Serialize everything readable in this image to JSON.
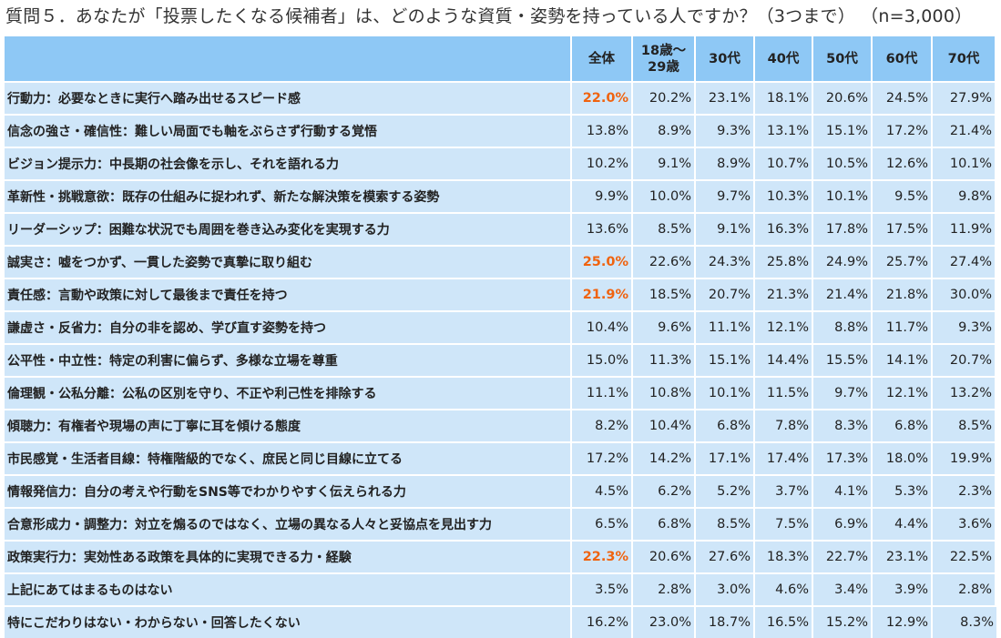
{
  "title": "質問５．あなたが「投票したくなる候補者」は、どのような資質・姿勢を持っている人ですか？（3つまで） （n=3,000）",
  "highlight_color": "#f0630f",
  "header_color": "#8ec8f5",
  "cell_color": "#cfe6f9",
  "chart_data": {
    "type": "table",
    "columns": [
      "全体",
      "18歳～29歳",
      "30代",
      "40代",
      "50代",
      "60代",
      "70代"
    ],
    "column_display": [
      [
        "全体"
      ],
      [
        "18歳～",
        "29歳"
      ],
      [
        "30代"
      ],
      [
        "40代"
      ],
      [
        "50代"
      ],
      [
        "60代"
      ],
      [
        "70代"
      ]
    ],
    "rows": [
      {
        "label": "行動力：必要なときに実行へ踏み出せるスピード感",
        "values": [
          "22.0%",
          "20.2%",
          "23.1%",
          "18.1%",
          "20.6%",
          "24.5%",
          "27.9%"
        ],
        "highlight": true
      },
      {
        "label": "信念の強さ・確信性：難しい局面でも軸をぶらさず行動する覚悟",
        "values": [
          "13.8%",
          "8.9%",
          "9.3%",
          "13.1%",
          "15.1%",
          "17.2%",
          "21.4%"
        ],
        "highlight": false
      },
      {
        "label": "ビジョン提示力：中長期の社会像を示し、それを語れる力",
        "values": [
          "10.2%",
          "9.1%",
          "8.9%",
          "10.7%",
          "10.5%",
          "12.6%",
          "10.1%"
        ],
        "highlight": false
      },
      {
        "label": "革新性・挑戦意欲：既存の仕組みに捉われず、新たな解決策を模索する姿勢",
        "values": [
          "9.9%",
          "10.0%",
          "9.7%",
          "10.3%",
          "10.1%",
          "9.5%",
          "9.8%"
        ],
        "highlight": false
      },
      {
        "label": "リーダーシップ：困難な状況でも周囲を巻き込み変化を実現する力",
        "values": [
          "13.6%",
          "8.5%",
          "9.1%",
          "16.3%",
          "17.8%",
          "17.5%",
          "11.9%"
        ],
        "highlight": false
      },
      {
        "label": "誠実さ：嘘をつかず、一貫した姿勢で真摯に取り組む",
        "values": [
          "25.0%",
          "22.6%",
          "24.3%",
          "25.8%",
          "24.9%",
          "25.7%",
          "27.4%"
        ],
        "highlight": true
      },
      {
        "label": "責任感：言動や政策に対して最後まで責任を持つ",
        "values": [
          "21.9%",
          "18.5%",
          "20.7%",
          "21.3%",
          "21.4%",
          "21.8%",
          "30.0%"
        ],
        "highlight": true
      },
      {
        "label": "謙虚さ・反省力：自分の非を認め、学び直す姿勢を持つ",
        "values": [
          "10.4%",
          "9.6%",
          "11.1%",
          "12.1%",
          "8.8%",
          "11.7%",
          "9.3%"
        ],
        "highlight": false
      },
      {
        "label": "公平性・中立性：特定の利害に偏らず、多様な立場を尊重",
        "values": [
          "15.0%",
          "11.3%",
          "15.1%",
          "14.4%",
          "15.5%",
          "14.1%",
          "20.7%"
        ],
        "highlight": false
      },
      {
        "label": "倫理観・公私分離：公私の区別を守り、不正や利己性を排除する",
        "values": [
          "11.1%",
          "10.8%",
          "10.1%",
          "11.5%",
          "9.7%",
          "12.1%",
          "13.2%"
        ],
        "highlight": false
      },
      {
        "label": "傾聴力：有権者や現場の声に丁寧に耳を傾ける態度",
        "values": [
          "8.2%",
          "10.4%",
          "6.8%",
          "7.8%",
          "8.3%",
          "6.8%",
          "8.5%"
        ],
        "highlight": false
      },
      {
        "label": "市民感覚・生活者目線：特権階級的でなく、庶民と同じ目線に立てる",
        "values": [
          "17.2%",
          "14.2%",
          "17.1%",
          "17.4%",
          "17.3%",
          "18.0%",
          "19.9%"
        ],
        "highlight": false
      },
      {
        "label": "情報発信力：自分の考えや行動をSNS等でわかりやすく伝えられる力",
        "values": [
          "4.5%",
          "6.2%",
          "5.2%",
          "3.7%",
          "4.1%",
          "5.3%",
          "2.3%"
        ],
        "highlight": false
      },
      {
        "label": "合意形成力・調整力：対立を煽るのではなく、立場の異なる人々と妥協点を見出す力",
        "values": [
          "6.5%",
          "6.8%",
          "8.5%",
          "7.5%",
          "6.9%",
          "4.4%",
          "3.6%"
        ],
        "highlight": false
      },
      {
        "label": "政策実行力：実効性ある政策を具体的に実現できる力・経験",
        "values": [
          "22.3%",
          "20.6%",
          "27.6%",
          "18.3%",
          "22.7%",
          "23.1%",
          "22.5%"
        ],
        "highlight": true
      },
      {
        "label": "上記にあてはまるものはない",
        "values": [
          "3.5%",
          "2.8%",
          "3.0%",
          "4.6%",
          "3.4%",
          "3.9%",
          "2.8%"
        ],
        "highlight": false
      },
      {
        "label": "特にこだわりはない・わからない・回答したくない",
        "values": [
          "16.2%",
          "23.0%",
          "18.7%",
          "16.5%",
          "15.2%",
          "12.9%",
          "8.3%"
        ],
        "highlight": false
      }
    ]
  }
}
